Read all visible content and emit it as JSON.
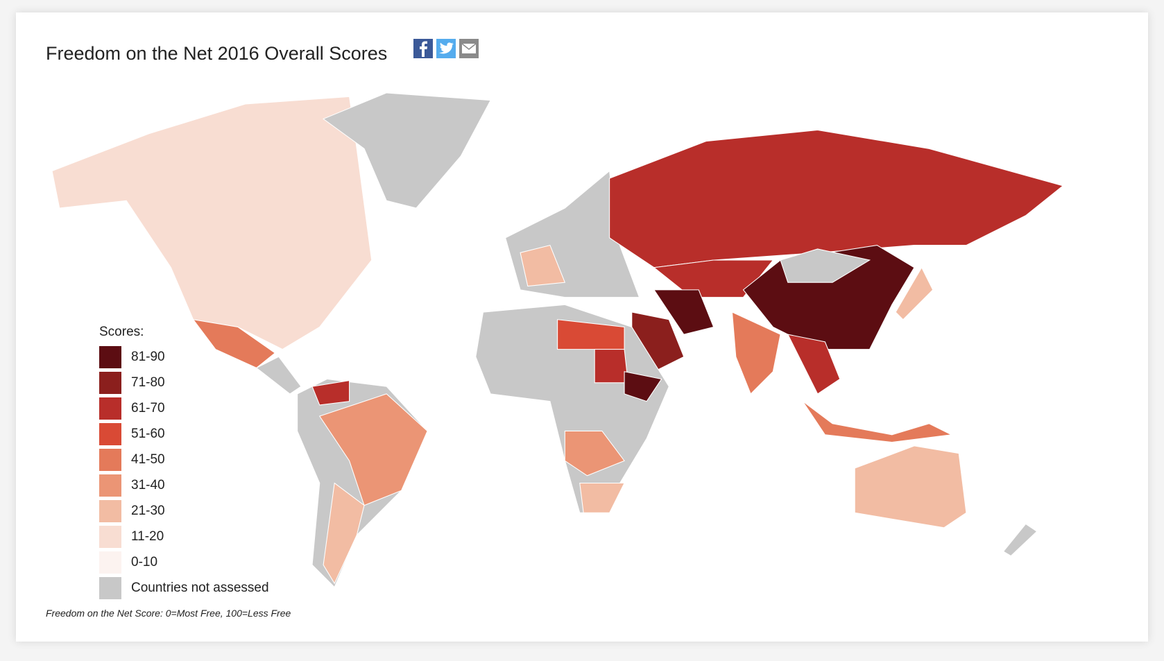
{
  "header": {
    "title": "Freedom on the Net 2016 Overall Scores"
  },
  "legend": {
    "title": "Scores:",
    "items": [
      {
        "label": "81-90",
        "color": "#5c0d12"
      },
      {
        "label": "71-80",
        "color": "#8b1f1d"
      },
      {
        "label": "61-70",
        "color": "#b82e2a"
      },
      {
        "label": "51-60",
        "color": "#d94a35"
      },
      {
        "label": "41-50",
        "color": "#e47a5a"
      },
      {
        "label": "31-40",
        "color": "#eb9575"
      },
      {
        "label": "21-30",
        "color": "#f2bca3"
      },
      {
        "label": "11-20",
        "color": "#f8ddd2"
      },
      {
        "label": "0-10",
        "color": "#fcf3f0"
      },
      {
        "label": "Countries not assessed",
        "color": "#c8c8c8"
      }
    ]
  },
  "footnote": "Freedom on the Net Score: 0=Most Free, 100=Less Free"
}
